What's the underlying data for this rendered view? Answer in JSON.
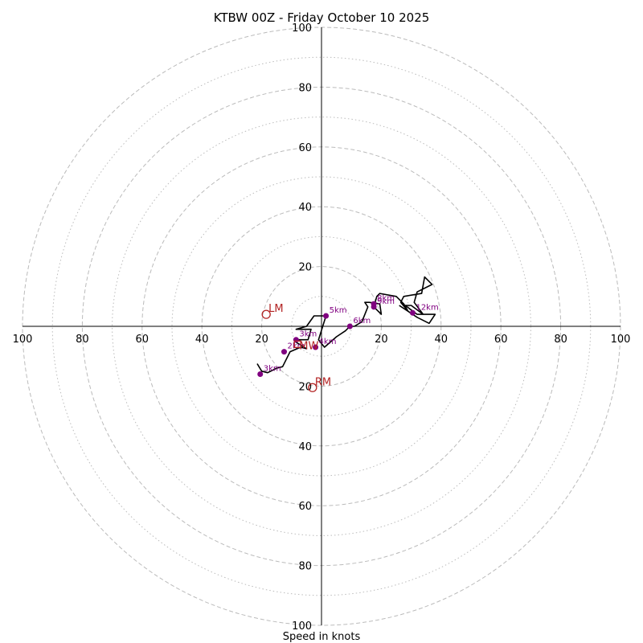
{
  "chart_data": {
    "type": "hodograph",
    "title": "KTBW 00Z - Friday October 10 2025",
    "xlabel": "Speed in knots",
    "range": 100,
    "rings_major": [
      20,
      40,
      60,
      80,
      100
    ],
    "rings_minor": [
      10,
      30,
      50,
      70,
      90
    ],
    "x_tick_labels": [
      "100",
      "80",
      "60",
      "40",
      "20",
      "20",
      "40",
      "60",
      "80",
      "100"
    ],
    "x_tick_values": [
      -100,
      -80,
      -60,
      -40,
      -20,
      20,
      40,
      60,
      80,
      100
    ],
    "y_tick_labels": [
      "100",
      "80",
      "60",
      "40",
      "20",
      "20",
      "40",
      "60",
      "80",
      "100"
    ],
    "y_tick_values": [
      100,
      80,
      60,
      40,
      20,
      -20,
      -40,
      -60,
      -80,
      -100
    ],
    "trace_color": "#000000",
    "height_color": "#800080",
    "motion_color": "#b22222",
    "grid_color": "#bbbbbb",
    "trace": [
      [
        -21.5,
        -12.5
      ],
      [
        -20,
        -15
      ],
      [
        -18,
        -15.5
      ],
      [
        -15,
        -14
      ],
      [
        -13,
        -13.5
      ],
      [
        -10.5,
        -8.5
      ],
      [
        -7,
        -7
      ],
      [
        -5,
        -7.5
      ],
      [
        -9,
        -5
      ],
      [
        -7.5,
        -4.5
      ],
      [
        -4.5,
        -4.5
      ],
      [
        -3.5,
        -1
      ],
      [
        -8.5,
        -1
      ],
      [
        -5,
        0
      ],
      [
        -2.5,
        3.5
      ],
      [
        1.5,
        3.5
      ],
      [
        -1,
        -4.5
      ],
      [
        1,
        -7
      ],
      [
        5,
        -3.5
      ],
      [
        8,
        -1.5
      ],
      [
        9.5,
        0
      ],
      [
        11,
        0
      ],
      [
        13.5,
        1.5
      ],
      [
        15.5,
        6.5
      ],
      [
        14.5,
        8
      ],
      [
        16,
        8
      ],
      [
        19.5,
        7.5
      ],
      [
        20,
        4
      ],
      [
        17.5,
        6.5
      ],
      [
        18.5,
        10
      ],
      [
        19.5,
        11
      ],
      [
        25,
        10
      ],
      [
        27.5,
        7.5
      ],
      [
        29,
        5
      ],
      [
        26.5,
        8
      ],
      [
        27.5,
        10
      ],
      [
        33.5,
        11
      ],
      [
        34.5,
        16.5
      ],
      [
        37,
        14
      ],
      [
        32,
        11.5
      ],
      [
        31,
        8
      ],
      [
        34,
        4
      ],
      [
        30,
        7
      ],
      [
        28,
        7
      ],
      [
        32,
        4
      ],
      [
        35,
        4
      ],
      [
        38,
        4
      ],
      [
        36,
        1
      ],
      [
        32,
        3
      ],
      [
        26,
        7
      ]
    ],
    "heights": [
      {
        "label": "3km",
        "u": -20.5,
        "v": -16
      },
      {
        "label": "2km",
        "u": -12.5,
        "v": -8.5
      },
      {
        "label": "3km",
        "u": -8.5,
        "v": -4.5
      },
      {
        "label": "4km",
        "u": -2,
        "v": -7
      },
      {
        "label": "5km",
        "u": 1.5,
        "v": 3.5
      },
      {
        "label": "6km",
        "u": 9.5,
        "v": 0
      },
      {
        "label": "8km",
        "u": 17.5,
        "v": 7.5
      },
      {
        "label": "9km",
        "u": 17.5,
        "v": 6.5
      },
      {
        "label": "12km",
        "u": 30.5,
        "v": 4.5
      }
    ],
    "storm_motion": [
      {
        "label": "LM",
        "u": -18.5,
        "v": 4
      },
      {
        "label": "RM",
        "u": -3,
        "v": -20.5
      },
      {
        "label": "MW",
        "u": -8,
        "v": -6
      }
    ]
  }
}
